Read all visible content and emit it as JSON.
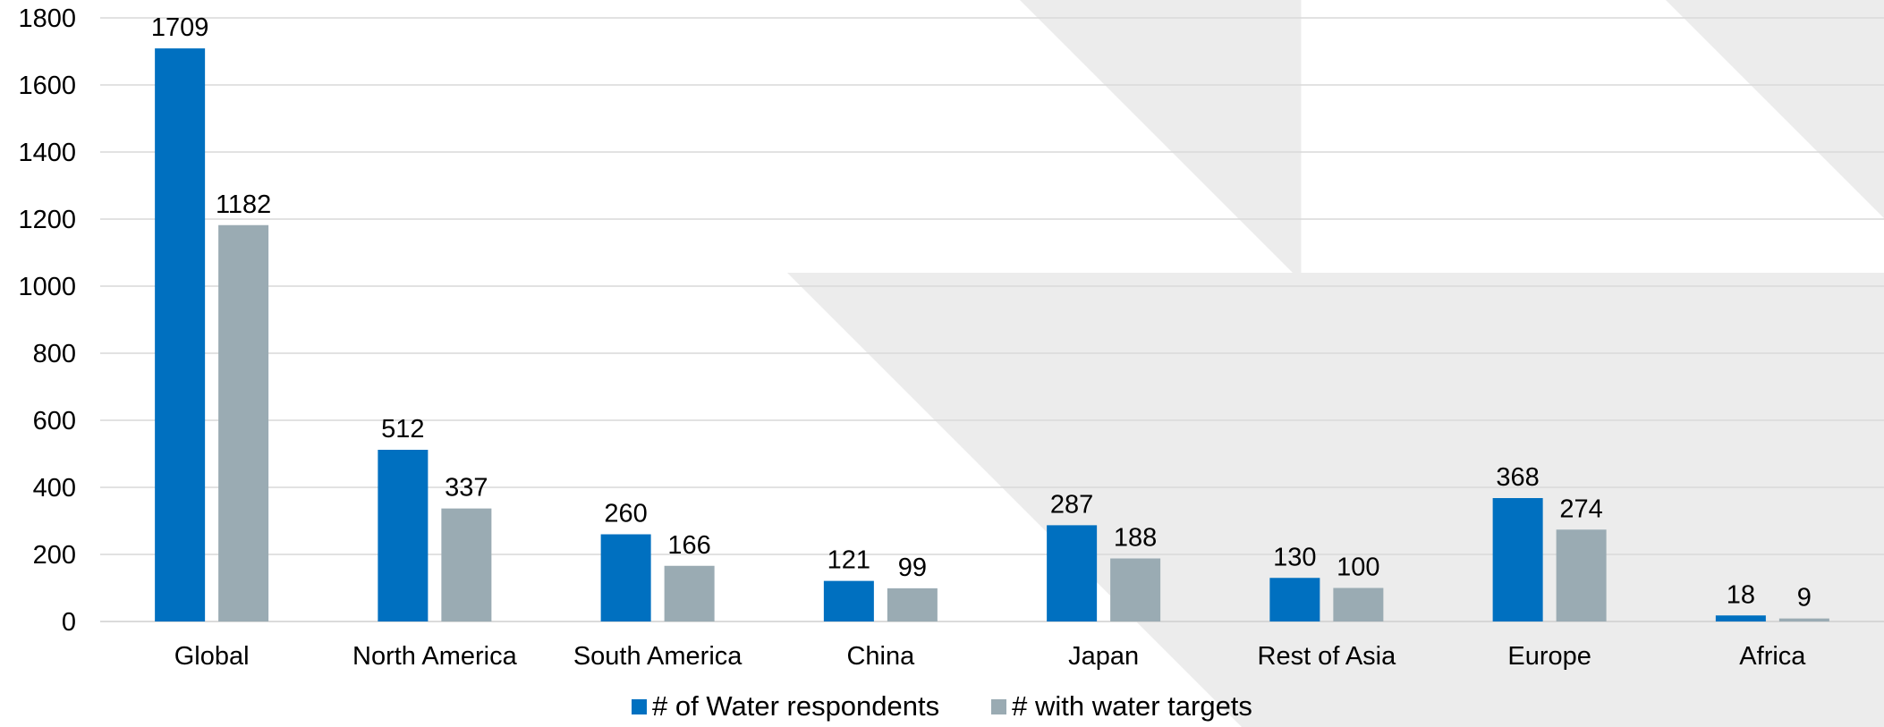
{
  "chart_data": {
    "type": "bar",
    "title": "",
    "xlabel": "",
    "ylabel": "",
    "ylim": [
      0,
      1800
    ],
    "yticks": [
      0,
      200,
      400,
      600,
      800,
      1000,
      1200,
      1400,
      1600,
      1800
    ],
    "grid": true,
    "legend_position": "bottom",
    "categories": [
      "Global",
      "North America",
      "South America",
      "China",
      "Japan",
      "Rest of Asia",
      "Europe",
      "Africa"
    ],
    "series": [
      {
        "name": "# of Water respondents",
        "color": "#0070c0",
        "values": [
          1709,
          512,
          260,
          121,
          287,
          130,
          368,
          18
        ]
      },
      {
        "name": "# with water targets",
        "color": "#9aabb3",
        "values": [
          1182,
          337,
          166,
          99,
          188,
          100,
          274,
          9
        ]
      }
    ]
  }
}
